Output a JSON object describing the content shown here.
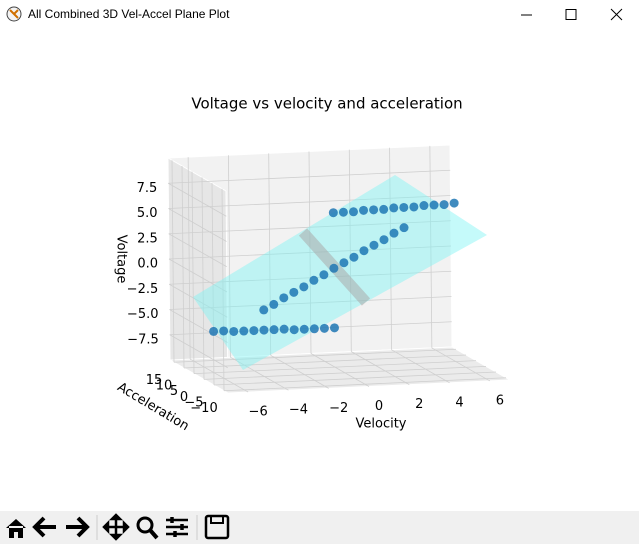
{
  "window": {
    "title": "All Combined 3D Vel-Accel Plane Plot"
  },
  "chart_data": {
    "type": "scatter3d",
    "title": "Voltage vs velocity and acceleration",
    "xlabel": "Velocity",
    "ylabel": "Acceleration",
    "zlabel": "Voltage",
    "color": "#1f77b4",
    "grid": true,
    "x": [
      -0.5,
      0,
      0.5,
      1,
      1.5,
      2,
      2.5,
      3,
      3.5,
      4,
      4.5,
      5,
      5.5,
      -4,
      -3.5,
      -3,
      -2.5,
      -2,
      -1.5,
      -1,
      -0.5,
      0,
      0.5,
      1,
      1.5,
      2,
      2.5,
      3,
      -6.5,
      -6,
      -5.5,
      -5,
      -4.5,
      -4,
      -3.5,
      -3,
      -2.5,
      -2,
      -1.5,
      -1,
      -0.5
    ],
    "y": [
      0,
      0,
      0,
      0,
      0,
      0,
      0,
      0,
      0,
      0,
      0,
      0,
      0,
      0,
      0,
      0,
      0,
      0,
      0,
      0,
      0,
      0,
      0,
      0,
      0,
      0,
      0,
      0,
      0,
      0,
      0,
      0,
      0,
      0,
      0,
      0,
      0,
      0,
      0,
      0,
      0
    ],
    "z": [
      5.9,
      5.9,
      5.9,
      6.0,
      6.0,
      6.0,
      6.1,
      6.1,
      6.1,
      6.2,
      6.2,
      6.2,
      6.3,
      -3.4,
      -2.9,
      -2.3,
      -1.8,
      -1.3,
      -0.7,
      -0.2,
      0.4,
      0.9,
      1.4,
      2.0,
      2.5,
      3.0,
      3.6,
      4.1,
      -5.3,
      -5.3,
      -5.4,
      -5.4,
      -5.4,
      -5.4,
      -5.4,
      -5.4,
      -5.5,
      -5.5,
      -5.5,
      -5.5,
      -5.5
    ],
    "xlim": [
      -7,
      7
    ],
    "ylim": [
      -12,
      17
    ],
    "zlim": [
      -10,
      10
    ],
    "xticks": [
      {
        "value": -6,
        "label": "−6"
      },
      {
        "value": -4,
        "label": "−4"
      },
      {
        "value": -2,
        "label": "−2"
      },
      0,
      2,
      4,
      6
    ],
    "yticks": [
      {
        "value": -10,
        "label": "−10"
      },
      {
        "value": -5,
        "label": "−5"
      },
      0,
      5,
      10,
      15
    ],
    "zticks": [
      {
        "value": -7.5,
        "label": "−7.5"
      },
      {
        "value": -5,
        "label": "−5.0"
      },
      {
        "value": -2.5,
        "label": "−2.5"
      },
      {
        "value": 0,
        "label": "0.0"
      },
      2.5,
      {
        "value": 5,
        "label": "5.0"
      },
      7.5
    ]
  }
}
